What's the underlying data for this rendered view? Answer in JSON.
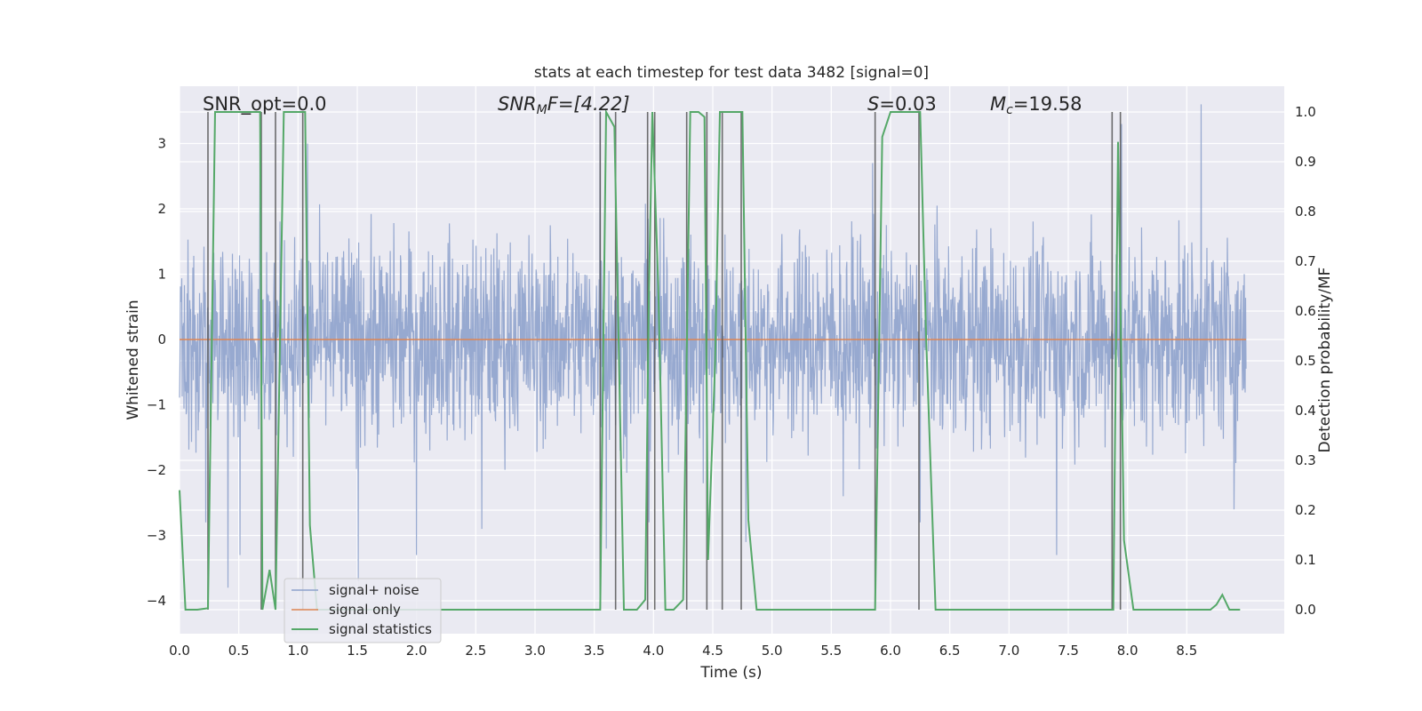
{
  "chart_data": {
    "type": "line",
    "title": "stats at each timestep for test data 3482 [signal=0]",
    "xlabel": "Time (s)",
    "ylabel": "Whitened strain",
    "ylabel_right": "Detection probability/MF",
    "xlim": [
      0.0,
      9.0
    ],
    "ylim": [
      -4.35,
      3.95
    ],
    "ylim_right": [
      -0.047,
      1.047
    ],
    "x_ticks": [
      "0.0",
      "0.5",
      "1.0",
      "1.5",
      "2.0",
      "2.5",
      "3.0",
      "3.5",
      "4.0",
      "4.5",
      "5.0",
      "5.5",
      "6.0",
      "6.5",
      "7.0",
      "7.5",
      "8.0",
      "8.5"
    ],
    "y_ticks_left": [
      "3",
      "2",
      "1",
      "0",
      "−1",
      "−2",
      "−3",
      "−4"
    ],
    "y_ticks_right": [
      "1.0",
      "0.9",
      "0.8",
      "0.7",
      "0.6",
      "0.5",
      "0.4",
      "0.3",
      "0.2",
      "0.1",
      "0.0"
    ],
    "annotations": {
      "snr_opt": "SNR_opt=0.0",
      "snr_mf": "F=[4.22]",
      "snr_mf_math": "SNR",
      "snr_mf_sub": "M",
      "s_value": "=0.03",
      "s_math": "S",
      "mc_value": "=19.58",
      "mc_math": "M",
      "mc_sub": "c"
    },
    "legend": {
      "position": "lower-left",
      "entries": [
        "signal+ noise",
        "signal only",
        "signal statistics"
      ]
    },
    "colors": {
      "noise": "#8ea2cc",
      "signal_only": "#dd8452",
      "statistics": "#55a868",
      "vlines": "#555555",
      "background": "#eaeaf2",
      "grid": "#ffffff"
    },
    "series": [
      {
        "name": "signal+ noise",
        "note": "whitened strain, Gaussian-like noise with amplitude ~ +/-2.5, peaks to ~ +/-3.5",
        "noise_band": [
          -1.75,
          1.75
        ],
        "spike_points": [
          [
            0.22,
            -2.8
          ],
          [
            0.41,
            -3.8
          ],
          [
            0.51,
            -3.3
          ],
          [
            0.68,
            2.9
          ],
          [
            1.08,
            3.0
          ],
          [
            1.51,
            -3.7
          ],
          [
            2.0,
            -3.3
          ],
          [
            2.55,
            -2.9
          ],
          [
            3.55,
            3.5
          ],
          [
            3.6,
            -3.2
          ],
          [
            3.96,
            -2.8
          ],
          [
            4.42,
            -2.2
          ],
          [
            4.78,
            -3.1
          ],
          [
            5.6,
            -2.4
          ],
          [
            5.85,
            2.7
          ],
          [
            6.25,
            -2.8
          ],
          [
            7.4,
            -3.3
          ],
          [
            7.95,
            3.3
          ],
          [
            8.62,
            3.6
          ],
          [
            8.9,
            -2.6
          ]
        ]
      },
      {
        "name": "signal only",
        "x": [
          0.0,
          9.0
        ],
        "values": [
          0.0,
          0.0
        ]
      },
      {
        "name": "signal statistics",
        "axis": "right",
        "x": [
          0.0,
          0.05,
          0.15,
          0.24,
          0.3,
          0.68,
          0.7,
          0.76,
          0.81,
          0.88,
          1.06,
          1.1,
          1.16,
          3.55,
          3.6,
          3.67,
          3.75,
          3.86,
          3.93,
          3.96,
          3.99,
          4.04,
          4.1,
          4.17,
          4.25,
          4.31,
          4.38,
          4.43,
          4.46,
          4.52,
          4.56,
          4.64,
          4.75,
          4.8,
          4.87,
          5.87,
          5.93,
          6.0,
          6.25,
          6.3,
          6.38,
          6.44,
          6.5,
          7.88,
          7.92,
          7.97,
          8.05,
          8.7,
          8.75,
          8.8,
          8.86,
          8.95
        ],
        "values": [
          0.24,
          0.0,
          0.0,
          0.003,
          1.0,
          1.0,
          0.0,
          0.08,
          0.0,
          1.0,
          1.0,
          0.17,
          0.0,
          0.0,
          1.0,
          0.97,
          0.0,
          0.0,
          0.02,
          0.62,
          1.0,
          0.65,
          0.0,
          0.0,
          0.02,
          1.0,
          1.0,
          0.99,
          0.1,
          0.5,
          1.0,
          1.0,
          1.0,
          0.18,
          0.0,
          0.0,
          0.95,
          1.0,
          1.0,
          0.55,
          0.0,
          0.0,
          0.0,
          0.0,
          0.94,
          0.14,
          0.0,
          0.0,
          0.01,
          0.03,
          0.0,
          0.0
        ]
      }
    ],
    "vlines": [
      0.24,
      0.69,
      0.81,
      1.04,
      3.55,
      3.68,
      3.95,
      4.01,
      4.28,
      4.45,
      4.58,
      4.74,
      5.87,
      6.24,
      7.87,
      7.94
    ]
  }
}
